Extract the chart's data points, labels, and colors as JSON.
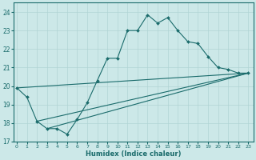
{
  "xlabel": "Humidex (Indice chaleur)",
  "xlim": [
    0,
    23
  ],
  "ylim": [
    17,
    24.5
  ],
  "xticks": [
    0,
    1,
    2,
    3,
    4,
    5,
    6,
    7,
    8,
    9,
    10,
    11,
    12,
    13,
    14,
    15,
    16,
    17,
    18,
    19,
    20,
    21,
    22,
    23
  ],
  "yticks": [
    17,
    18,
    19,
    20,
    21,
    22,
    23,
    24
  ],
  "bg_color": "#cce8e8",
  "grid_color": "#b0d4d4",
  "line_color": "#1a6b6b",
  "line1_x": [
    0,
    1,
    2,
    3,
    4,
    5,
    6,
    7,
    8,
    9,
    10,
    11,
    12,
    13,
    14,
    15,
    16,
    17,
    18,
    19,
    20,
    21,
    22,
    23
  ],
  "line1_y": [
    19.9,
    19.4,
    18.1,
    17.7,
    17.7,
    17.4,
    18.2,
    19.1,
    20.3,
    21.5,
    21.5,
    23.0,
    23.0,
    23.85,
    23.4,
    23.7,
    23.0,
    22.4,
    22.3,
    21.6,
    21.0,
    20.9,
    20.7,
    20.7
  ],
  "line2_x": [
    0,
    23
  ],
  "line2_y": [
    19.9,
    20.7
  ],
  "line3_x": [
    2,
    23
  ],
  "line3_y": [
    18.1,
    20.7
  ],
  "line4_x": [
    3,
    23
  ],
  "line4_y": [
    17.7,
    20.7
  ]
}
